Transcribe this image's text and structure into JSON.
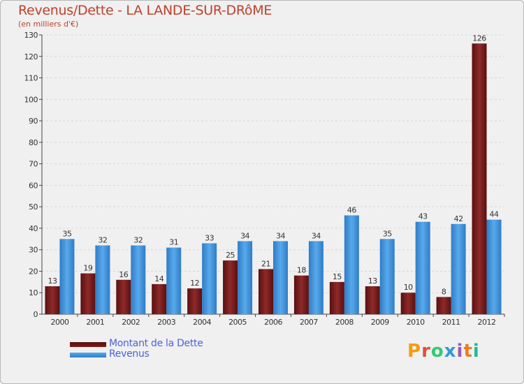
{
  "header": {
    "title": "Revenus/Dette - LA LANDE-SUR-DRôME",
    "subtitle": "(en milliers d'€)"
  },
  "logo": {
    "text": "Proxiti",
    "colors": [
      "#f39c12",
      "#e74c3c",
      "#2ecc71",
      "#3498db",
      "#9b59b6",
      "#e67e22",
      "#1abc9c"
    ]
  },
  "chart_data": {
    "type": "bar",
    "categories": [
      "2000",
      "2001",
      "2002",
      "2003",
      "2004",
      "2005",
      "2006",
      "2007",
      "2008",
      "2009",
      "2010",
      "2011",
      "2012"
    ],
    "series": [
      {
        "name": "Montant de la Dette",
        "color": "#7a1a1a",
        "values": [
          13,
          19,
          16,
          14,
          12,
          25,
          21,
          18,
          15,
          13,
          10,
          8,
          126
        ]
      },
      {
        "name": "Revenus",
        "color": "#3d8fd8",
        "values": [
          35,
          32,
          32,
          31,
          33,
          34,
          34,
          34,
          46,
          35,
          43,
          42,
          44
        ]
      }
    ],
    "ylim": [
      0,
      130
    ],
    "yticks": [
      0,
      10,
      20,
      30,
      40,
      50,
      60,
      70,
      80,
      90,
      100,
      110,
      120,
      130
    ],
    "grid": true,
    "legend": "bottom-left"
  }
}
